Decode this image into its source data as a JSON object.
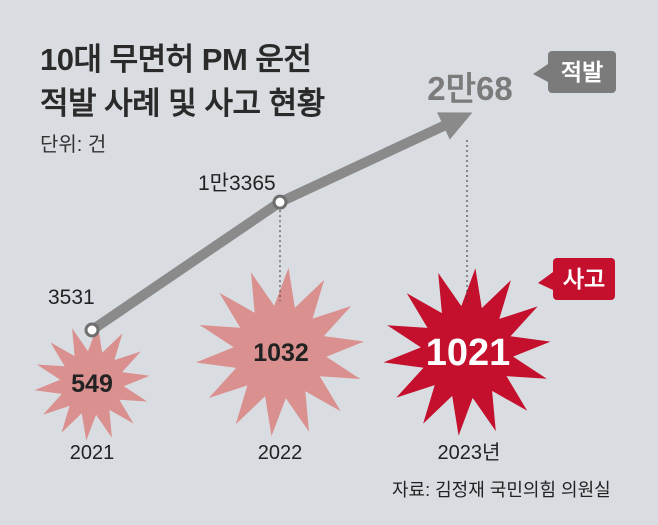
{
  "header": {
    "title_line1": "10대 무면허 PM 운전",
    "title_line2": "적발 사례 및 사고 현황",
    "unit": "단위: 건"
  },
  "source": "자료: 김정재 국민의힘 의원실",
  "colors": {
    "background": "#d9dde2",
    "enforcement_line": "#8a8a8a",
    "enforcement_tag": "#7b7b7b",
    "accident_light": "#d9908e",
    "accident_highlight": "#c4102c"
  },
  "chart_data": {
    "type": "line",
    "categories": [
      "2021",
      "2022",
      "2023년"
    ],
    "series": [
      {
        "name": "적발",
        "values": [
          3531,
          13365,
          20068
        ],
        "labels": [
          "3531",
          "1만3365",
          "2만68"
        ]
      },
      {
        "name": "사고",
        "values": [
          549,
          1032,
          1021
        ],
        "labels": [
          "549",
          "1032",
          "1021"
        ]
      }
    ]
  }
}
